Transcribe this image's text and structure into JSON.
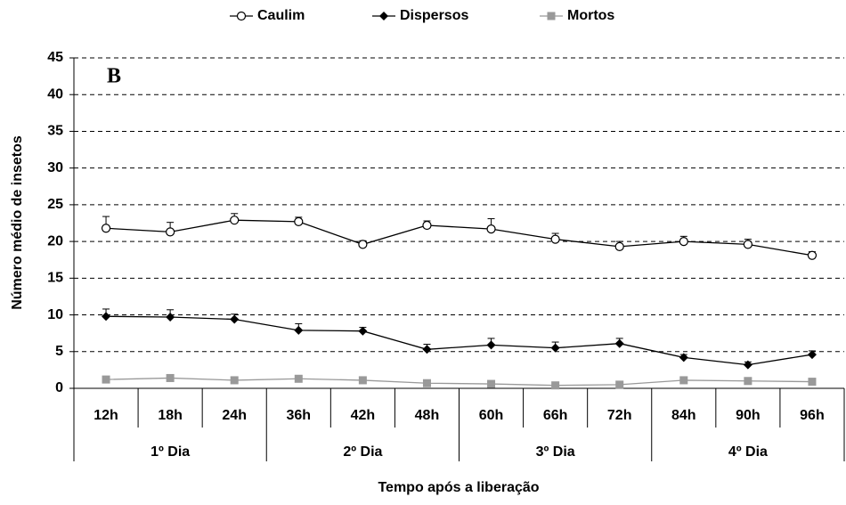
{
  "chart_data": {
    "type": "line",
    "annotation": "B",
    "y_label": "Número  médio de insetos",
    "x_label": "Tempo após a liberação",
    "category_groups": [
      {
        "label": "1º Dia",
        "categories": [
          "12h",
          "18h",
          "24h"
        ]
      },
      {
        "label": "2º Dia",
        "categories": [
          "36h",
          "42h",
          "48h"
        ]
      },
      {
        "label": "3º Dia",
        "categories": [
          "60h",
          "66h",
          "72h"
        ]
      },
      {
        "label": "4º Dia",
        "categories": [
          "84h",
          "90h",
          "96h"
        ]
      }
    ],
    "series": [
      {
        "name": "Caulim",
        "color": "#000000",
        "marker": "circle-open",
        "values": [
          21.8,
          21.3,
          22.9,
          22.7,
          19.6,
          22.2,
          21.7,
          20.3,
          19.3,
          20.0,
          19.6,
          18.1
        ],
        "errors": [
          1.6,
          1.3,
          0.9,
          0.6,
          0.5,
          0.6,
          1.4,
          0.8,
          0.7,
          0.7,
          0.7,
          0.5
        ]
      },
      {
        "name": "Dispersos",
        "color": "#000000",
        "marker": "diamond",
        "values": [
          9.8,
          9.7,
          9.4,
          7.9,
          7.8,
          5.3,
          5.9,
          5.5,
          6.1,
          4.2,
          3.2,
          4.6
        ],
        "errors": [
          1.0,
          1.0,
          0.7,
          0.9,
          0.5,
          0.7,
          0.9,
          0.8,
          0.7,
          0.4,
          0.4,
          0.5
        ]
      },
      {
        "name": "Mortos",
        "color": "#999999",
        "marker": "square",
        "values": [
          1.2,
          1.4,
          1.1,
          1.3,
          1.1,
          0.7,
          0.6,
          0.4,
          0.5,
          1.1,
          1.0,
          0.9
        ]
      }
    ],
    "ylim": [
      0,
      45
    ],
    "yticks": [
      0,
      5,
      10,
      15,
      20,
      25,
      30,
      35,
      40,
      45
    ],
    "grid": true
  }
}
